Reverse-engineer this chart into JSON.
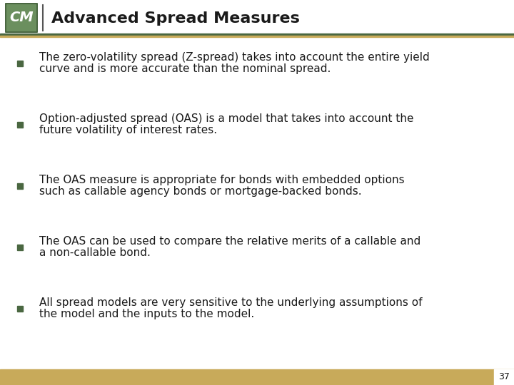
{
  "title": "Advanced Spread Measures",
  "title_fontsize": 16,
  "title_color": "#1a1a1a",
  "background_color": "#ffffff",
  "header_bar_dark": "#4a6741",
  "header_bar_gold": "#c8aa5a",
  "footer_bar_gold": "#c8aa5a",
  "bullet_color": "#4a6741",
  "text_color": "#1a1a1a",
  "text_fontsize": 11.0,
  "page_number": "37",
  "bullets": [
    "The zero-volatility spread (Z-spread) takes into account the entire yield\ncurve and is more accurate than the nominal spread.",
    "Option-adjusted spread (OAS) is a model that takes into account the\nfuture volatility of interest rates.",
    "The OAS measure is appropriate for bonds with embedded options\nsuch as callable agency bonds or mortgage-backed bonds.",
    "The OAS can be used to compare the relative merits of a callable and\na non-callable bond.",
    "All spread models are very sensitive to the underlying assumptions of\nthe model and the inputs to the model."
  ],
  "logo_green_dark": "#4a6741",
  "logo_green_light": "#6b8f5e"
}
